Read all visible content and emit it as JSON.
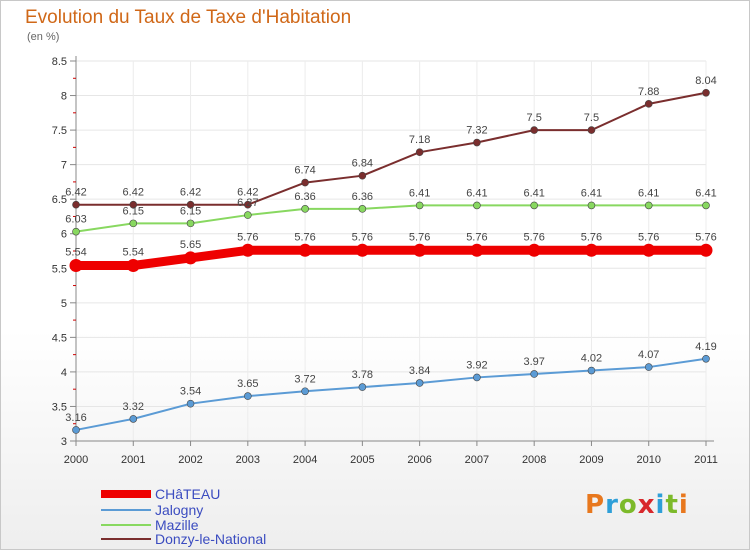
{
  "title": "Evolution du Taux de Taxe d'Habitation",
  "subtitle": "(en %)",
  "logo": {
    "text": "Proxiti",
    "colors": [
      "#e8781e",
      "#2e9fd8",
      "#7cba2a",
      "#d8282c",
      "#2e9fd8",
      "#7cba2a",
      "#e8781e"
    ]
  },
  "chart_data": {
    "type": "line",
    "x": [
      "2000",
      "2001",
      "2002",
      "2003",
      "2004",
      "2005",
      "2006",
      "2007",
      "2008",
      "2009",
      "2010",
      "2011"
    ],
    "ylim": [
      3,
      8.5
    ],
    "yticks": [
      "3",
      "3.5",
      "4",
      "4.5",
      "5",
      "5.5",
      "6",
      "6.5",
      "7",
      "7.5",
      "8",
      "8.5"
    ],
    "series": [
      {
        "name": "CHâTEAU",
        "color": "#ee0000",
        "width": 9,
        "values": [
          5.54,
          5.54,
          5.65,
          5.76,
          5.76,
          5.76,
          5.76,
          5.76,
          5.76,
          5.76,
          5.76,
          5.76
        ],
        "labels": [
          "5.54",
          "5.54",
          "5.65",
          "5.76",
          "5.76",
          "5.76",
          "5.76",
          "5.76",
          "5.76",
          "5.76",
          "5.76",
          "5.76"
        ]
      },
      {
        "name": "Jalogny",
        "color": "#5b9bd5",
        "width": 2,
        "values": [
          3.16,
          3.32,
          3.54,
          3.65,
          3.72,
          3.78,
          3.84,
          3.92,
          3.97,
          4.02,
          4.07,
          4.19
        ],
        "labels": [
          "3.16",
          "3.32",
          "3.54",
          "3.65",
          "3.72",
          "3.78",
          "3.84",
          "3.92",
          "3.97",
          "4.02",
          "4.07",
          "4.19"
        ]
      },
      {
        "name": "Mazille",
        "color": "#88d860",
        "width": 2,
        "values": [
          6.03,
          6.15,
          6.15,
          6.27,
          6.36,
          6.36,
          6.41,
          6.41,
          6.41,
          6.41,
          6.41,
          6.41
        ],
        "labels": [
          "6.03",
          "6.15",
          "6.15",
          "6.27",
          "6.36",
          "6.36",
          "6.41",
          "6.41",
          "6.41",
          "6.41",
          "6.41",
          "6.41"
        ]
      },
      {
        "name": "Donzy-le-National",
        "color": "#7a2e2e",
        "width": 2,
        "values": [
          6.42,
          6.42,
          6.42,
          6.42,
          6.74,
          6.84,
          7.18,
          7.32,
          7.5,
          7.5,
          7.88,
          8.04
        ],
        "labels": [
          "6.42",
          "6.42",
          "6.42",
          "6.42",
          "6.74",
          "6.84",
          "7.18",
          "7.32",
          "7.5",
          "7.5",
          "7.88",
          "8.04"
        ]
      }
    ]
  }
}
